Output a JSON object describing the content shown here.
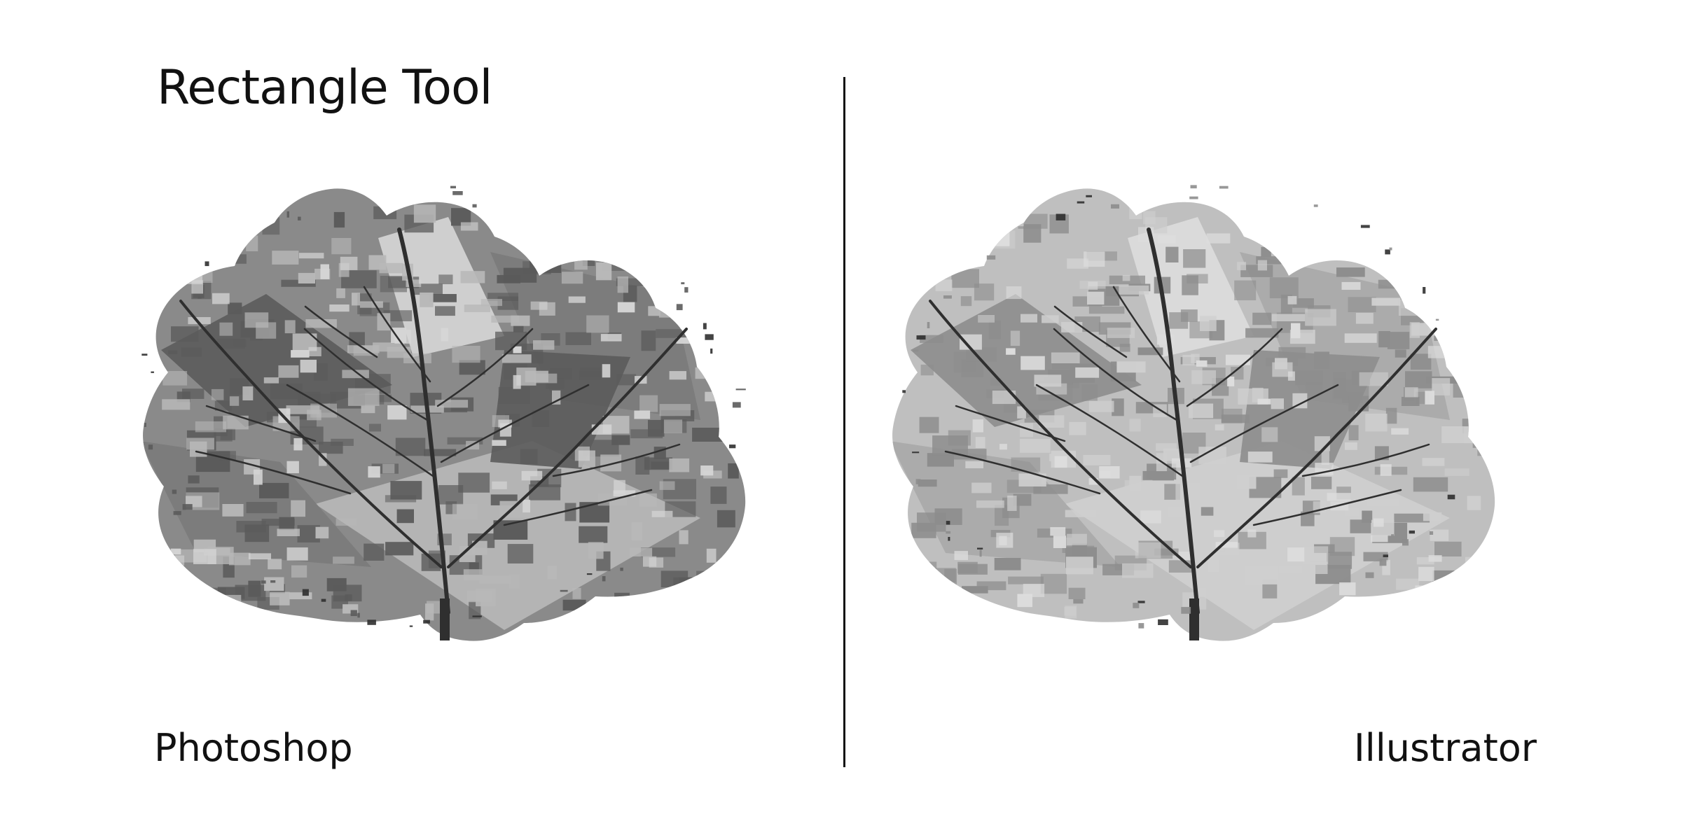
{
  "title": "Rectangle Tool",
  "panels": [
    {
      "caption": "Photoshop",
      "render": "dark",
      "colors": {
        "base": "#8a8a8a",
        "dark": "#5b5b5b",
        "mid": "#7a7a7a",
        "light": "#b8b8b8",
        "highlight": "#d6d6d6",
        "vein": "#2f2f2f"
      }
    },
    {
      "caption": "Illustrator",
      "render": "light",
      "colors": {
        "base": "#bfbfbf",
        "dark": "#8d8d8d",
        "mid": "#a8a8a8",
        "light": "#cfcfcf",
        "highlight": "#dddddd",
        "vein": "#2f2f2f"
      }
    }
  ],
  "divider_color": "#111111"
}
